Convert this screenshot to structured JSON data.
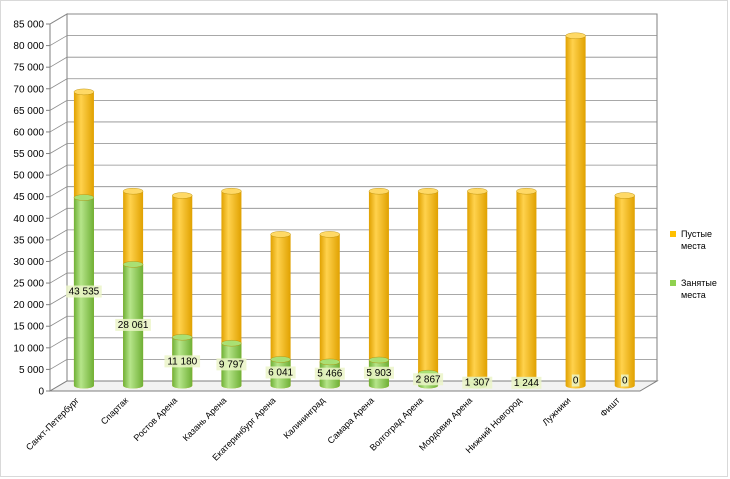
{
  "chart_data": {
    "type": "bar",
    "stacked": true,
    "three_d": true,
    "categories": [
      "Санкт-Петербург",
      "Спартак",
      "Ростов Арена",
      "Казань Арена",
      "Екатеринбург Арена",
      "Калининград",
      "Самара Арена",
      "Волгоград Арена",
      "Мордовия Арена",
      "Нижний Новгород",
      "Лужники",
      "Фишт"
    ],
    "series": [
      {
        "name": "Занятые места",
        "color": "#8fd14f",
        "values": [
          43535,
          28061,
          11180,
          9797,
          6041,
          5466,
          5903,
          2867,
          1307,
          1244,
          0,
          0
        ],
        "labels": [
          "43 535",
          "28 061",
          "11 180",
          "9 797",
          "6 041",
          "5 466",
          "5 903",
          "2 867",
          "1 307",
          "1 244",
          "0",
          "0"
        ]
      },
      {
        "name": "Пустые места",
        "color": "#ffc000",
        "values": [
          24465,
          16939,
          32820,
          35203,
          28959,
          29534,
          39097,
          42133,
          43693,
          43756,
          81000,
          44000
        ]
      }
    ],
    "ylim": [
      0,
      85000
    ],
    "ytick_step": 5000,
    "ytick_labels": [
      "0",
      "5 000",
      "10 000",
      "15 000",
      "20 000",
      "25 000",
      "30 000",
      "35 000",
      "40 000",
      "45 000",
      "50 000",
      "55 000",
      "60 000",
      "65 000",
      "70 000",
      "75 000",
      "80 000",
      "85 000"
    ],
    "grid": true,
    "legend_position": "right",
    "legend": [
      {
        "label_lines": [
          "Пустые",
          "места"
        ],
        "color": "#ffc000"
      },
      {
        "label_lines": [
          "Занятые",
          "места"
        ],
        "color": "#8fd14f"
      }
    ]
  }
}
